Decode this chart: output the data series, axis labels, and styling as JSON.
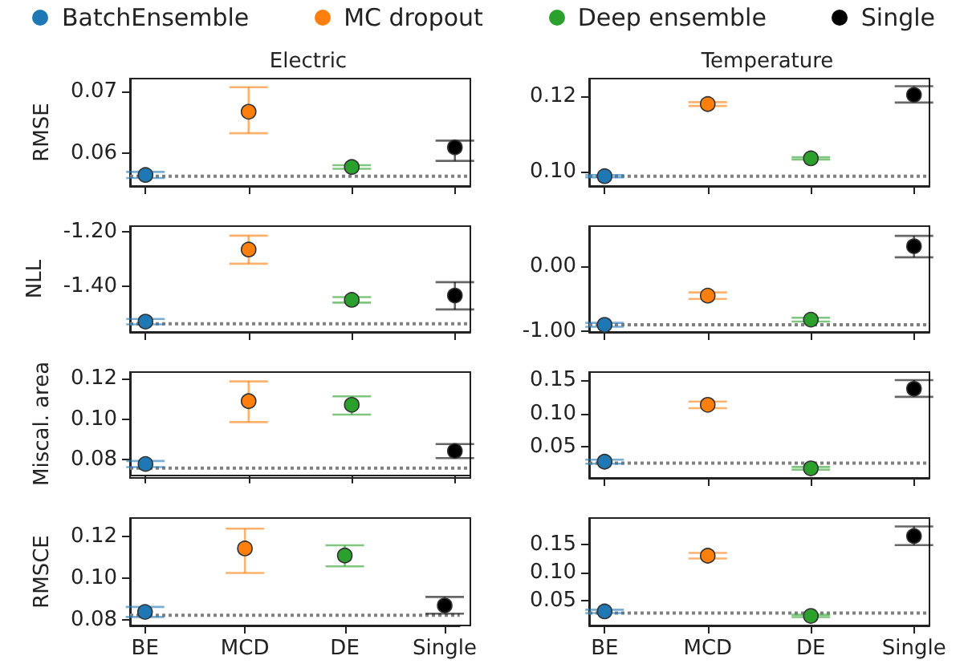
{
  "chart_data": [
    {
      "type": "scatter",
      "title": "Electric",
      "ylabel": "RMSE",
      "categories": [
        "BE",
        "MCD",
        "DE",
        "Single"
      ],
      "ylim": [
        0.0546,
        0.0721
      ],
      "yticks": [
        0.06,
        0.07
      ],
      "grid": false,
      "marker": "circle",
      "tick_labels": "y",
      "legend": "top",
      "series": [
        {
          "name": "BatchEnsemble",
          "color": "#1f77b4",
          "x": [
            "BE"
          ],
          "values": [
            0.0564
          ],
          "errors": [
            0.0005
          ]
        },
        {
          "name": "MC dropout",
          "color": "#ff7f0e",
          "x": [
            "MCD"
          ],
          "values": [
            0.0667
          ],
          "errors": [
            [
              0.0632,
              0.0707
            ]
          ]
        },
        {
          "name": "Deep ensemble",
          "color": "#2ca02c",
          "x": [
            "DE"
          ],
          "values": [
            0.0577
          ],
          "errors": [
            0.0003
          ]
        },
        {
          "name": "Single",
          "color": "#000000",
          "x": [
            "Single"
          ],
          "values": [
            0.0609
          ],
          "errors": [
            [
              0.0587,
              0.062
            ]
          ]
        }
      ],
      "ref_lines": [
        {
          "axis": "y",
          "value": 0.0562,
          "color": "#808080",
          "line_style": "dotted"
        }
      ]
    },
    {
      "type": "scatter",
      "title": "Temperature",
      "categories": [
        "BE",
        "MCD",
        "DE",
        "Single"
      ],
      "ylim": [
        0.0963,
        0.1246
      ],
      "yticks": [
        {
          "value": 0.1,
          "label": "0.10"
        },
        0.12
      ],
      "grid": false,
      "marker": "circle",
      "tick_labels": "y",
      "series": [
        {
          "color": "#1f77b4",
          "x": [
            "BE"
          ],
          "values": [
            0.0989
          ],
          "errors": [
            0.0003
          ]
        },
        {
          "color": "#ff7f0e",
          "x": [
            "MCD"
          ],
          "values": [
            0.1179
          ],
          "errors": [
            0.0005
          ]
        },
        {
          "color": "#2ca02c",
          "x": [
            "DE"
          ],
          "values": [
            0.1036
          ],
          "errors": [
            0.0003
          ]
        },
        {
          "color": "#000000",
          "x": [
            "Single"
          ],
          "values": [
            0.1203
          ],
          "errors": [
            [
              0.1183,
              0.1226
            ]
          ]
        }
      ],
      "ref_lines": [
        {
          "axis": "y",
          "value": 0.0989,
          "color": "#808080",
          "line_style": "dotted"
        }
      ]
    },
    {
      "type": "scatter",
      "ylabel": "NLL",
      "categories": [
        "BE",
        "MCD",
        "DE",
        "Single"
      ],
      "ylim": [
        -1.569,
        -1.18
      ],
      "yticks": [
        {
          "value": -1.4,
          "label": "-1.40"
        },
        {
          "value": -1.2,
          "label": "-1.20"
        }
      ],
      "grid": false,
      "marker": "circle",
      "tick_labels": "y",
      "series": [
        {
          "color": "#1f77b4",
          "x": [
            "BE"
          ],
          "values": [
            -1.531
          ],
          "errors": [
            0.01
          ]
        },
        {
          "color": "#ff7f0e",
          "x": [
            "MCD"
          ],
          "values": [
            -1.266
          ],
          "errors": [
            [
              -1.318,
              -1.215
            ]
          ]
        },
        {
          "color": "#2ca02c",
          "x": [
            "DE"
          ],
          "values": [
            -1.451
          ],
          "errors": [
            0.01
          ]
        },
        {
          "color": "#000000",
          "x": [
            "Single"
          ],
          "values": [
            -1.435
          ],
          "errors": [
            [
              -1.486,
              -1.386
            ]
          ]
        }
      ],
      "ref_lines": [
        {
          "axis": "y",
          "value": -1.539,
          "color": "#808080",
          "line_style": "dotted"
        }
      ]
    },
    {
      "type": "scatter",
      "categories": [
        "BE",
        "MCD",
        "DE",
        "Single"
      ],
      "ylim": [
        -1.01,
        0.62
      ],
      "yticks": [
        {
          "value": -1,
          "label": "-1.00"
        },
        {
          "value": 0,
          "label": "0.00"
        }
      ],
      "grid": false,
      "marker": "circle",
      "tick_labels": "y",
      "series": [
        {
          "color": "#1f77b4",
          "x": [
            "BE"
          ],
          "values": [
            -0.9
          ],
          "errors": [
            0.03
          ]
        },
        {
          "color": "#ff7f0e",
          "x": [
            "MCD"
          ],
          "values": [
            -0.45
          ],
          "errors": [
            0.05
          ]
        },
        {
          "color": "#2ca02c",
          "x": [
            "DE"
          ],
          "values": [
            -0.82
          ],
          "errors": [
            0.03
          ]
        },
        {
          "color": "#000000",
          "x": [
            "Single"
          ],
          "values": [
            0.31
          ],
          "errors": [
            [
              0.14,
              0.47
            ]
          ]
        }
      ],
      "ref_lines": [
        {
          "axis": "y",
          "value": -0.9,
          "color": "#808080",
          "line_style": "dotted"
        }
      ]
    },
    {
      "type": "scatter",
      "ylabel": "Miscal. area",
      "categories": [
        "BE",
        "MCD",
        "DE",
        "Single"
      ],
      "ylim": [
        0.0723,
        0.1231
      ],
      "yticks": [
        0.08,
        {
          "value": 0.1,
          "label": "0.10"
        },
        0.12
      ],
      "grid": false,
      "marker": "circle",
      "tick_labels": "y",
      "series": [
        {
          "color": "#1f77b4",
          "x": [
            "BE"
          ],
          "values": [
            0.0779
          ],
          "errors": [
            0.0015
          ]
        },
        {
          "color": "#ff7f0e",
          "x": [
            "MCD"
          ],
          "values": [
            0.1088
          ],
          "errors": [
            [
              0.0985,
              0.1185
            ]
          ]
        },
        {
          "color": "#2ca02c",
          "x": [
            "DE"
          ],
          "values": [
            0.107
          ],
          "errors": [
            [
              0.1022,
              0.1112
            ]
          ]
        },
        {
          "color": "#000000",
          "x": [
            "Single"
          ],
          "values": [
            0.0843
          ],
          "errors": [
            [
              0.0808,
              0.0877
            ]
          ]
        }
      ],
      "ref_lines": [
        {
          "axis": "y",
          "value": 0.0759,
          "color": "#808080",
          "line_style": "dotted"
        }
      ]
    },
    {
      "type": "scatter",
      "categories": [
        "BE",
        "MCD",
        "DE",
        "Single"
      ],
      "ylim": [
        0.0037,
        0.162
      ],
      "yticks": [
        0.05,
        {
          "value": 0.1,
          "label": "0.10"
        },
        0.15
      ],
      "grid": false,
      "marker": "circle",
      "tick_labels": "y",
      "series": [
        {
          "color": "#1f77b4",
          "x": [
            "BE"
          ],
          "values": [
            0.028
          ],
          "errors": [
            0.003
          ]
        },
        {
          "color": "#ff7f0e",
          "x": [
            "MCD"
          ],
          "values": [
            0.113
          ],
          "errors": [
            0.005
          ]
        },
        {
          "color": "#2ca02c",
          "x": [
            "DE"
          ],
          "values": [
            0.018
          ],
          "errors": [
            0.002
          ]
        },
        {
          "color": "#000000",
          "x": [
            "Single"
          ],
          "values": [
            0.137
          ],
          "errors": [
            [
              0.125,
              0.15
            ]
          ]
        }
      ],
      "ref_lines": [
        {
          "axis": "y",
          "value": 0.026,
          "color": "#808080",
          "line_style": "dotted"
        }
      ]
    },
    {
      "type": "scatter",
      "ylabel": "RMSCE",
      "categories": [
        "BE",
        "MCD",
        "DE",
        "Single"
      ],
      "ylim": [
        0.0774,
        0.129
      ],
      "yticks": [
        0.08,
        {
          "value": 0.1,
          "label": "0.10"
        },
        0.12
      ],
      "grid": false,
      "marker": "circle",
      "series": [
        {
          "color": "#1f77b4",
          "x": [
            "BE"
          ],
          "values": [
            0.0839
          ],
          "errors": [
            0.0024
          ]
        },
        {
          "color": "#ff7f0e",
          "x": [
            "MCD"
          ],
          "values": [
            0.1144
          ],
          "errors": [
            [
              0.1026,
              0.1239
            ]
          ]
        },
        {
          "color": "#2ca02c",
          "x": [
            "DE"
          ],
          "values": [
            0.111
          ],
          "errors": [
            [
              0.1058,
              0.1159
            ]
          ]
        },
        {
          "color": "#000000",
          "x": [
            "Single"
          ],
          "values": [
            0.087
          ],
          "errors": [
            [
              0.0831,
              0.0911
            ]
          ]
        }
      ],
      "ref_lines": [
        {
          "axis": "y",
          "value": 0.0823,
          "color": "#808080",
          "line_style": "dotted"
        }
      ]
    },
    {
      "type": "scatter",
      "categories": [
        "BE",
        "MCD",
        "DE",
        "Single"
      ],
      "ylim": [
        0.006,
        0.197
      ],
      "yticks": [
        0.05,
        {
          "value": 0.1,
          "label": "0.10"
        },
        0.15
      ],
      "grid": false,
      "marker": "circle",
      "series": [
        {
          "color": "#1f77b4",
          "x": [
            "BE"
          ],
          "values": [
            0.031
          ],
          "errors": [
            0.003
          ]
        },
        {
          "color": "#ff7f0e",
          "x": [
            "MCD"
          ],
          "values": [
            0.13
          ],
          "errors": [
            0.005
          ]
        },
        {
          "color": "#2ca02c",
          "x": [
            "DE"
          ],
          "values": [
            0.023
          ],
          "errors": [
            0.002
          ]
        },
        {
          "color": "#000000",
          "x": [
            "Single"
          ],
          "values": [
            0.165
          ],
          "errors": [
            [
              0.149,
              0.182
            ]
          ]
        }
      ],
      "ref_lines": [
        {
          "axis": "y",
          "value": 0.028,
          "color": "#808080",
          "line_style": "dotted"
        }
      ]
    }
  ]
}
